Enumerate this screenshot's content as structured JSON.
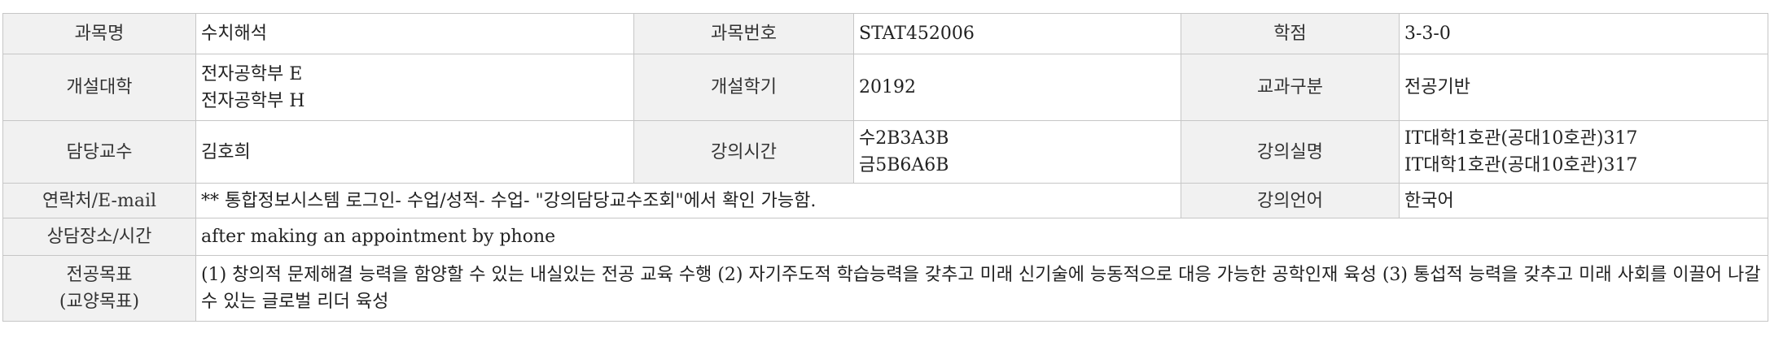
{
  "rows": {
    "course_name_label": "과목명",
    "course_name": "수치해석",
    "course_number_label": "과목번호",
    "course_number": "STAT452006",
    "credits_label": "학점",
    "credits": "3-3-0",
    "college_label": "개설대학",
    "college_lines": [
      "전자공학부 E",
      "전자공학부 H"
    ],
    "semester_label": "개설학기",
    "semester": "20192",
    "category_label": "교과구분",
    "category": "전공기반",
    "professor_label": "담당교수",
    "professor": "김호희",
    "time_label": "강의시간",
    "time_lines": [
      "수2B3A3B",
      "금5B6A6B"
    ],
    "room_label": "강의실명",
    "room_lines": [
      "IT대학1호관(공대10호관)317",
      "IT대학1호관(공대10호관)317"
    ],
    "contact_label": "연락처/E-mail",
    "contact": "** 통합정보시스템 로그인- 수업/성적- 수업- \"강의담당교수조회\"에서 확인 가능함.",
    "language_label": "강의언어",
    "language": "한국어",
    "consult_label": "상담장소/시간",
    "consult": "after making an appointment by phone",
    "goal_label_lines": [
      "전공목표",
      "(교양목표)"
    ],
    "goal": "(1) 창의적 문제해결 능력을 함양할 수 있는 내실있는 전공 교육 수행 (2) 자기주도적 학습능력을 갖추고 미래 신기술에 능동적으로 대응 가능한 공학인재 육성 (3) 통섭적 능력을 갖추고 미래 사회를 이끌어 나갈 수 있는 글로벌 리더 육성"
  }
}
